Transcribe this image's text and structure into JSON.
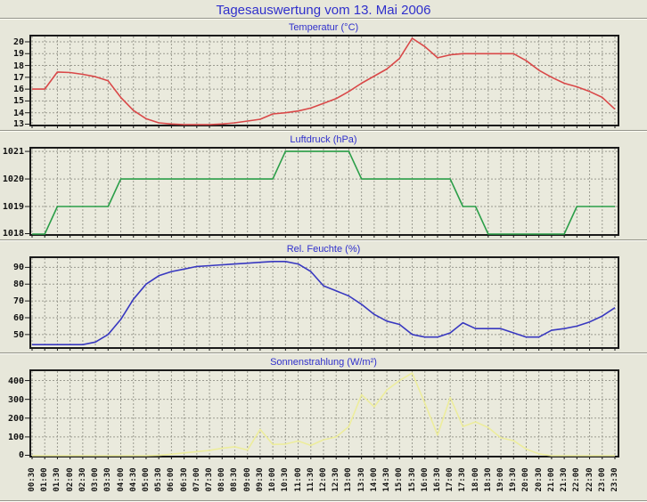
{
  "page": {
    "title": "Tagesauswertung vom 13. Mai 2006"
  },
  "theme": {
    "page_bg": "#e7e7da",
    "plot_bg": "#eaeadd",
    "grid_color": "#9b9b90",
    "axis_color": "#1a1a1a",
    "title_color": "#3030cc"
  },
  "chart_data": {
    "type": "line",
    "shared_x": [
      "00:30",
      "01:00",
      "01:30",
      "02:00",
      "02:30",
      "03:00",
      "03:30",
      "04:00",
      "04:30",
      "05:00",
      "05:30",
      "06:00",
      "06:30",
      "07:00",
      "07:30",
      "08:00",
      "08:30",
      "09:00",
      "09:30",
      "10:00",
      "10:30",
      "11:00",
      "11:30",
      "12:00",
      "12:30",
      "13:00",
      "13:30",
      "14:00",
      "14:30",
      "15:00",
      "15:30",
      "16:00",
      "16:30",
      "17:00",
      "17:30",
      "18:00",
      "18:30",
      "19:00",
      "19:30",
      "20:00",
      "20:30",
      "21:00",
      "21:30",
      "22:00",
      "22:30",
      "23:00",
      "23:30"
    ],
    "grid": true,
    "legend": "none",
    "charts": [
      {
        "name": "temperature",
        "type": "line",
        "title": "Temperatur (°C)",
        "color": "#d94848",
        "categories_ref": "shared_x",
        "y_axis": {
          "min": 13,
          "max": 20.45,
          "ticks": [
            13,
            14,
            15,
            16,
            17,
            18,
            19,
            20
          ]
        },
        "values": [
          16,
          16,
          17.45,
          17.4,
          17.25,
          17.05,
          16.7,
          15.3,
          14.2,
          13.5,
          13.15,
          13.05,
          13,
          13,
          13,
          13.05,
          13.15,
          13.3,
          13.45,
          13.9,
          14,
          14.15,
          14.4,
          14.8,
          15.2,
          15.8,
          16.5,
          17.1,
          17.7,
          18.6,
          20.3,
          19.6,
          18.65,
          18.9,
          19,
          19,
          19,
          19,
          19,
          18.4,
          17.6,
          17,
          16.5,
          16.2,
          15.8,
          15.3,
          14.3
        ]
      },
      {
        "name": "pressure",
        "type": "line",
        "title": "Luftdruck (hPa)",
        "color": "#2b9e48",
        "categories_ref": "shared_x",
        "y_axis": {
          "min": 1018,
          "max": 1021.1,
          "ticks": [
            1018,
            1019,
            1020,
            1021
          ]
        },
        "values": [
          1018,
          1018,
          1019,
          1019,
          1019,
          1019,
          1019,
          1020,
          1020,
          1020,
          1020,
          1020,
          1020,
          1020,
          1020,
          1020,
          1020,
          1020,
          1020,
          1020,
          1021,
          1021,
          1021,
          1021,
          1021,
          1021,
          1020,
          1020,
          1020,
          1020,
          1020,
          1020,
          1020,
          1020,
          1019,
          1019,
          1018,
          1018,
          1018,
          1018,
          1018,
          1018,
          1018,
          1019,
          1019,
          1019,
          1019
        ]
      },
      {
        "name": "humidity",
        "type": "line",
        "title": "Rel. Feuchte (%)",
        "color": "#3838c0",
        "categories_ref": "shared_x",
        "y_axis": {
          "min": 42.5,
          "max": 95.5,
          "ticks": [
            50,
            60,
            70,
            80,
            90
          ]
        },
        "values": [
          44,
          44,
          44,
          44,
          44,
          45.5,
          50,
          59,
          71,
          80,
          85,
          87.5,
          89,
          90.5,
          91,
          91.5,
          92,
          92.5,
          93,
          93.5,
          93.5,
          92,
          87.5,
          79,
          76,
          73,
          68,
          62,
          58,
          56,
          50,
          48.5,
          48.5,
          51,
          57,
          53.5,
          53.5,
          53.5,
          51,
          48.5,
          48.5,
          52.5,
          53.5,
          55,
          57.5,
          61,
          66
        ]
      },
      {
        "name": "radiation",
        "type": "line",
        "title": "Sonnenstrahlung (W/m²)",
        "color": "#eded9c",
        "categories_ref": "shared_x",
        "y_axis": {
          "min": 0,
          "max": 450,
          "ticks": [
            0,
            100,
            200,
            300,
            400
          ]
        },
        "values": [
          0,
          0,
          0,
          0,
          0,
          0,
          0,
          0,
          0,
          0,
          2,
          8,
          15,
          22,
          28,
          40,
          48,
          30,
          140,
          60,
          62,
          78,
          55,
          85,
          100,
          155,
          325,
          260,
          350,
          400,
          440,
          280,
          110,
          310,
          155,
          180,
          150,
          95,
          80,
          35,
          10,
          0,
          0,
          0,
          0,
          0,
          0
        ]
      }
    ]
  }
}
